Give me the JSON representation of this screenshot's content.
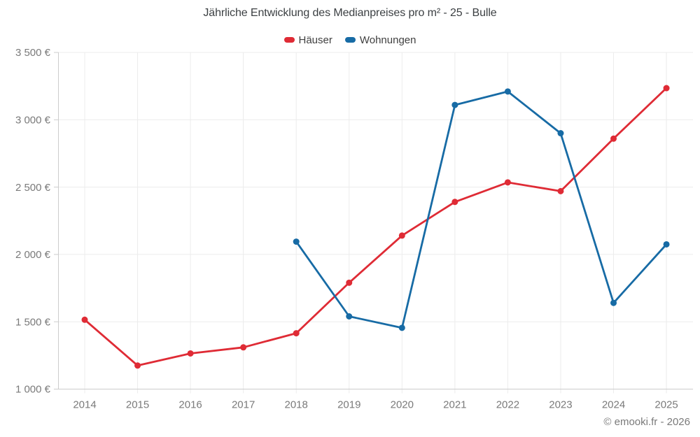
{
  "title": "Jährliche Entwicklung des Medianpreises pro m² - 25 - Bulle",
  "watermark": "© emooki.fr - 2026",
  "colors": {
    "haeuser": "#df2b35",
    "wohnungen": "#176ba5",
    "grid": "#ececec",
    "axis": "#cccccc",
    "title_text": "#3c4043",
    "tick_text": "#7a7a7a",
    "legend_text": "#3f3f3f",
    "watermark_text": "#7a7a7a"
  },
  "chart_data": {
    "type": "line",
    "title": "Jährliche Entwicklung des Medianpreises pro m² - 25 - Bulle",
    "x": [
      "2014",
      "2015",
      "2016",
      "2017",
      "2018",
      "2019",
      "2020",
      "2021",
      "2022",
      "2023",
      "2024",
      "2025"
    ],
    "series": [
      {
        "name": "Häuser",
        "color": "#df2b35",
        "values": [
          1515,
          1175,
          1265,
          1310,
          1415,
          1790,
          2140,
          2390,
          2535,
          2470,
          2860,
          3235
        ]
      },
      {
        "name": "Wohnungen",
        "color": "#176ba5",
        "values": [
          null,
          null,
          null,
          null,
          2095,
          1540,
          1455,
          3110,
          3210,
          2900,
          1640,
          2075
        ]
      }
    ],
    "ylim": [
      1000,
      3500
    ],
    "yticks": [
      {
        "value": 1000,
        "label": "1 000 €"
      },
      {
        "value": 1500,
        "label": "1 500 €"
      },
      {
        "value": 2000,
        "label": "2 000 €"
      },
      {
        "value": 2500,
        "label": "2 500 €"
      },
      {
        "value": 3000,
        "label": "3 000 €"
      },
      {
        "value": 3500,
        "label": "3 500 €"
      }
    ],
    "grid": true,
    "legend_position": "top",
    "marker": "circle"
  }
}
